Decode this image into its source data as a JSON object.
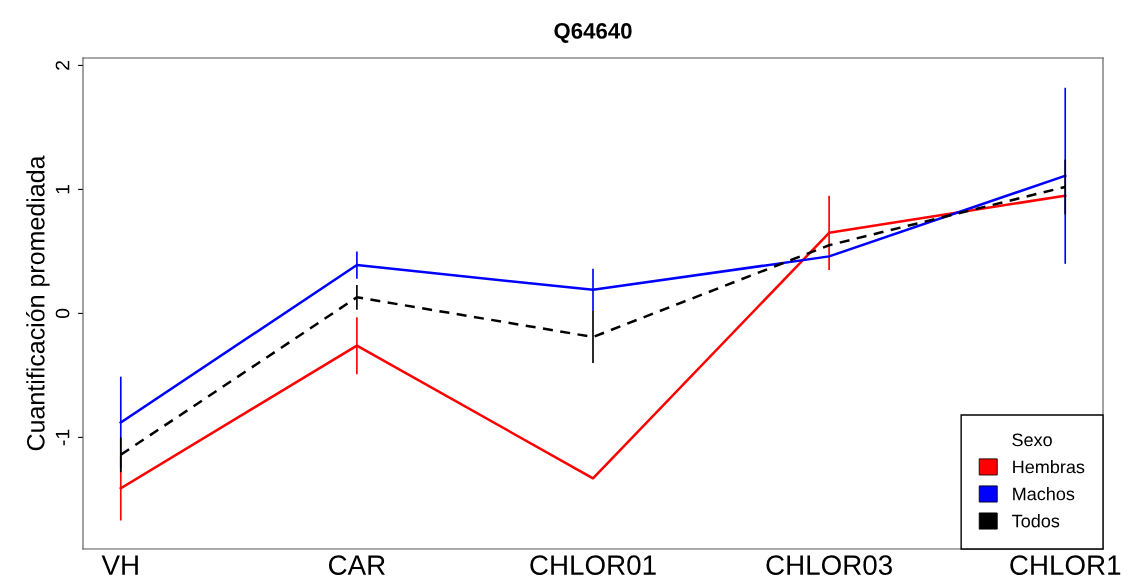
{
  "chart_data": {
    "type": "line",
    "title": "Q64640",
    "ylabel": "Cuantificación promediada",
    "legend_title": "Sexo",
    "categories": [
      "VH",
      "CAR",
      "CHLOR01",
      "CHLOR03",
      "CHLOR1"
    ],
    "series": [
      {
        "name": "Hembras",
        "color": "#ff0000",
        "values": [
          -1.41,
          -0.26,
          -1.33,
          0.65,
          0.95
        ],
        "errors": [
          0.26,
          0.23,
          null,
          0.3,
          null
        ]
      },
      {
        "name": "Machos",
        "color": "#0000ff",
        "values": [
          -0.88,
          0.39,
          0.19,
          0.46,
          1.11
        ],
        "errors": [
          0.37,
          0.11,
          0.17,
          null,
          0.71
        ]
      },
      {
        "name": "Todos",
        "color": "#000000",
        "values": [
          -1.14,
          0.13,
          -0.19,
          0.55,
          1.02
        ],
        "errors": [
          0.14,
          0.1,
          0.21,
          null,
          0.22
        ],
        "line_style": "dashed"
      }
    ],
    "ylim": [
      -1.9,
      2.06
    ],
    "yticks": [
      -1,
      0,
      1,
      2
    ],
    "grid": false,
    "legend": "bottom right",
    "marker": "none"
  }
}
